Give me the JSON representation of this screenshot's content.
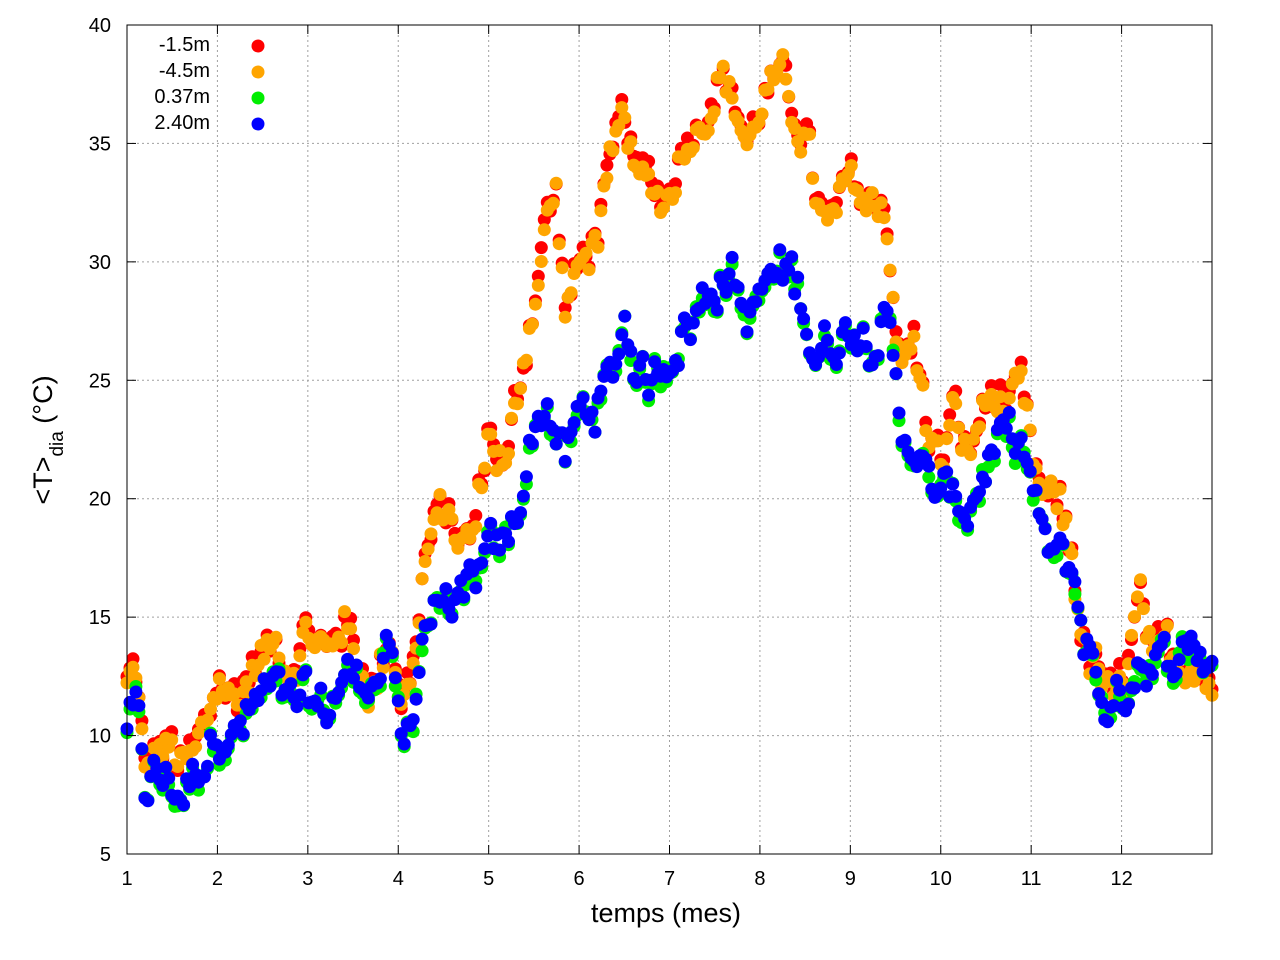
{
  "chart_data": {
    "type": "scatter",
    "title": "",
    "xlabel": "temps (mes)",
    "ylabel": {
      "main": "<T>",
      "sub": "dia",
      "unit": " (°C)"
    },
    "xlim": [
      1,
      13
    ],
    "ylim": [
      5,
      40
    ],
    "xticks": [
      "1",
      "2",
      "3",
      "4",
      "5",
      "6",
      "7",
      "8",
      "9",
      "10",
      "11",
      "12"
    ],
    "yticks": [
      "5",
      "10",
      "15",
      "20",
      "25",
      "30",
      "35",
      "40"
    ],
    "grid": true,
    "legend_position": "top-left",
    "series": [
      {
        "name": "-1.5m",
        "color": "#ff0000"
      },
      {
        "name": "-4.5m",
        "color": "#ffa500"
      },
      {
        "name": "0.37m",
        "color": "#00ee00"
      },
      {
        "name": "2.40m",
        "color": "#0000ff"
      }
    ],
    "series_anchors": {
      "soil": [
        [
          1.0,
          12.2
        ],
        [
          1.1,
          12.5
        ],
        [
          1.15,
          10.5
        ],
        [
          1.2,
          8.0
        ],
        [
          1.3,
          9.0
        ],
        [
          1.45,
          9.5
        ],
        [
          1.6,
          8.5
        ],
        [
          1.75,
          9.0
        ],
        [
          1.9,
          10.5
        ],
        [
          2.0,
          12.3
        ],
        [
          2.2,
          11.5
        ],
        [
          2.4,
          12.8
        ],
        [
          2.6,
          13.8
        ],
        [
          2.8,
          13.2
        ],
        [
          3.0,
          14.5
        ],
        [
          3.2,
          13.2
        ],
        [
          3.4,
          15.0
        ],
        [
          3.55,
          13.0
        ],
        [
          3.75,
          12.0
        ],
        [
          3.9,
          14.5
        ],
        [
          4.05,
          11.5
        ],
        [
          4.15,
          12.5
        ],
        [
          4.3,
          17.5
        ],
        [
          4.5,
          19.5
        ],
        [
          4.7,
          18.0
        ],
        [
          4.85,
          18.5
        ],
        [
          5.0,
          23.0
        ],
        [
          5.2,
          21.0
        ],
        [
          5.35,
          25.0
        ],
        [
          5.5,
          28.5
        ],
        [
          5.65,
          32.0
        ],
        [
          5.75,
          32.8
        ],
        [
          5.85,
          28.0
        ],
        [
          6.0,
          29.5
        ],
        [
          6.2,
          31.5
        ],
        [
          6.35,
          33.5
        ],
        [
          6.5,
          36.0
        ],
        [
          6.65,
          33.0
        ],
        [
          6.8,
          33.5
        ],
        [
          6.95,
          32.5
        ],
        [
          7.1,
          34.5
        ],
        [
          7.25,
          35.5
        ],
        [
          7.4,
          36.5
        ],
        [
          7.55,
          37.8
        ],
        [
          7.7,
          37.0
        ],
        [
          7.8,
          35.5
        ],
        [
          7.9,
          35.0
        ],
        [
          8.05,
          37.0
        ],
        [
          8.2,
          37.5
        ],
        [
          8.35,
          36.5
        ],
        [
          8.5,
          35.5
        ],
        [
          8.6,
          33.0
        ],
        [
          8.75,
          31.0
        ],
        [
          8.9,
          32.5
        ],
        [
          9.05,
          33.5
        ],
        [
          9.2,
          32.0
        ],
        [
          9.35,
          33.0
        ],
        [
          9.45,
          30.0
        ],
        [
          9.55,
          25.5
        ],
        [
          9.7,
          26.5
        ],
        [
          9.85,
          23.0
        ],
        [
          10.0,
          21.5
        ],
        [
          10.15,
          23.5
        ],
        [
          10.3,
          21.5
        ],
        [
          10.45,
          23.5
        ],
        [
          10.6,
          24.5
        ],
        [
          10.75,
          23.5
        ],
        [
          10.9,
          24.2
        ],
        [
          11.0,
          21.5
        ],
        [
          11.15,
          19.5
        ],
        [
          11.3,
          20.0
        ],
        [
          11.45,
          17.5
        ],
        [
          11.6,
          13.5
        ],
        [
          11.75,
          12.5
        ],
        [
          11.9,
          11.0
        ],
        [
          12.05,
          12.5
        ],
        [
          12.2,
          15.5
        ],
        [
          12.35,
          12.5
        ],
        [
          12.5,
          13.5
        ],
        [
          12.65,
          13.0
        ],
        [
          12.8,
          13.5
        ],
        [
          12.95,
          12.5
        ],
        [
          13.0,
          12.0
        ]
      ],
      "air": [
        [
          1.0,
          10.5
        ],
        [
          1.1,
          11.0
        ],
        [
          1.15,
          9.5
        ],
        [
          1.2,
          7.5
        ],
        [
          1.3,
          8.5
        ],
        [
          1.45,
          8.0
        ],
        [
          1.6,
          7.5
        ],
        [
          1.75,
          8.5
        ],
        [
          1.9,
          9.5
        ],
        [
          2.0,
          10.5
        ],
        [
          2.2,
          10.0
        ],
        [
          2.4,
          11.0
        ],
        [
          2.6,
          12.0
        ],
        [
          2.8,
          11.0
        ],
        [
          3.0,
          11.5
        ],
        [
          3.2,
          11.0
        ],
        [
          3.4,
          12.5
        ],
        [
          3.55,
          12.5
        ],
        [
          3.75,
          12.5
        ],
        [
          3.9,
          13.5
        ],
        [
          4.05,
          9.0
        ],
        [
          4.15,
          11.0
        ],
        [
          4.3,
          15.0
        ],
        [
          4.5,
          16.0
        ],
        [
          4.7,
          15.0
        ],
        [
          4.85,
          16.5
        ],
        [
          5.0,
          17.5
        ],
        [
          5.2,
          18.0
        ],
        [
          5.35,
          20.0
        ],
        [
          5.5,
          23.0
        ],
        [
          5.65,
          24.0
        ],
        [
          5.75,
          22.5
        ],
        [
          5.85,
          21.5
        ],
        [
          6.0,
          23.5
        ],
        [
          6.2,
          24.0
        ],
        [
          6.35,
          25.0
        ],
        [
          6.5,
          27.5
        ],
        [
          6.65,
          25.5
        ],
        [
          6.8,
          25.0
        ],
        [
          6.95,
          26.0
        ],
        [
          7.1,
          27.0
        ],
        [
          7.25,
          27.5
        ],
        [
          7.4,
          28.5
        ],
        [
          7.55,
          29.5
        ],
        [
          7.7,
          29.5
        ],
        [
          7.8,
          28.0
        ],
        [
          7.9,
          27.5
        ],
        [
          8.05,
          29.0
        ],
        [
          8.2,
          29.5
        ],
        [
          8.35,
          29.5
        ],
        [
          8.5,
          28.0
        ],
        [
          8.6,
          26.0
        ],
        [
          8.75,
          26.5
        ],
        [
          8.9,
          27.0
        ],
        [
          9.05,
          27.5
        ],
        [
          9.2,
          27.0
        ],
        [
          9.35,
          27.5
        ],
        [
          9.45,
          26.5
        ],
        [
          9.55,
          23.0
        ],
        [
          9.7,
          22.5
        ],
        [
          9.85,
          20.5
        ],
        [
          10.0,
          20.0
        ],
        [
          10.15,
          20.0
        ],
        [
          10.3,
          19.5
        ],
        [
          10.45,
          21.0
        ],
        [
          10.6,
          22.0
        ],
        [
          10.75,
          22.5
        ],
        [
          10.9,
          22.5
        ],
        [
          11.0,
          20.5
        ],
        [
          11.15,
          18.0
        ],
        [
          11.3,
          17.5
        ],
        [
          11.45,
          17.0
        ],
        [
          11.6,
          14.0
        ],
        [
          11.75,
          12.0
        ],
        [
          11.9,
          11.0
        ],
        [
          12.05,
          12.0
        ],
        [
          12.2,
          13.5
        ],
        [
          12.35,
          13.0
        ],
        [
          12.5,
          13.0
        ],
        [
          12.65,
          13.5
        ],
        [
          12.8,
          14.0
        ],
        [
          12.95,
          13.0
        ],
        [
          13.0,
          13.5
        ]
      ]
    }
  }
}
